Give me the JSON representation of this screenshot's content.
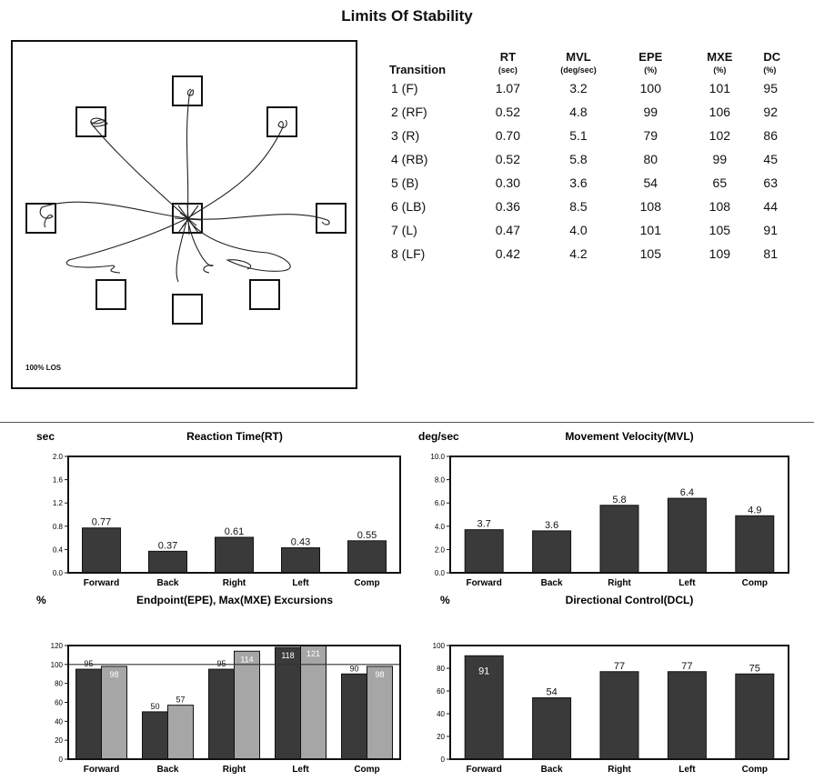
{
  "page_title": "Limits Of Stability",
  "trace_panel": {
    "label": "100% LOS"
  },
  "table": {
    "headers": [
      {
        "label": "Transition",
        "unit": ""
      },
      {
        "label": "RT",
        "unit": "(sec)"
      },
      {
        "label": "MVL",
        "unit": "(deg/sec)"
      },
      {
        "label": "EPE",
        "unit": "(%)"
      },
      {
        "label": "MXE",
        "unit": "(%)"
      },
      {
        "label": "DC",
        "unit": "(%)"
      }
    ],
    "rows": [
      [
        "1  (F)",
        "1.07",
        "3.2",
        "100",
        "101",
        "95"
      ],
      [
        "2  (RF)",
        "0.52",
        "4.8",
        "99",
        "106",
        "92"
      ],
      [
        "3  (R)",
        "0.70",
        "5.1",
        "79",
        "102",
        "86"
      ],
      [
        "4  (RB)",
        "0.52",
        "5.8",
        "80",
        "99",
        "45"
      ],
      [
        "5  (B)",
        "0.30",
        "3.6",
        "54",
        "65",
        "63"
      ],
      [
        "6  (LB)",
        "0.36",
        "8.5",
        "108",
        "108",
        "44"
      ],
      [
        "7  (L)",
        "0.47",
        "4.0",
        "101",
        "105",
        "91"
      ],
      [
        "8  (LF)",
        "0.42",
        "4.2",
        "105",
        "109",
        "81"
      ]
    ]
  },
  "chart_data": [
    {
      "type": "bar",
      "title": "Reaction Time(RT)",
      "unit_label": "sec",
      "categories": [
        "Forward",
        "Back",
        "Right",
        "Left",
        "Comp"
      ],
      "values": [
        0.77,
        0.37,
        0.61,
        0.43,
        0.55
      ],
      "value_labels": [
        "0.77",
        "0.37",
        "0.61",
        "0.43",
        "0.55"
      ],
      "yticks": [
        "0.0",
        "0.4",
        "0.8",
        "1.2",
        "1.6",
        "2.0"
      ],
      "ylim": [
        0,
        2.0
      ],
      "colors": [
        "#3a3a3a"
      ]
    },
    {
      "type": "bar",
      "title": "Movement Velocity(MVL)",
      "unit_label": "deg/sec",
      "categories": [
        "Forward",
        "Back",
        "Right",
        "Left",
        "Comp"
      ],
      "values": [
        3.7,
        3.6,
        5.8,
        6.4,
        4.9
      ],
      "value_labels": [
        "3.7",
        "3.6",
        "5.8",
        "6.4",
        "4.9"
      ],
      "yticks": [
        "0.0",
        "2.0",
        "4.0",
        "6.0",
        "8.0",
        "10.0"
      ],
      "ylim": [
        0,
        10.0
      ],
      "colors": [
        "#3a3a3a"
      ]
    },
    {
      "type": "bar",
      "title": "Endpoint(EPE), Max(MXE) Excursions",
      "unit_label": "%",
      "categories": [
        "Forward",
        "Back",
        "Right",
        "Left",
        "Comp"
      ],
      "series": [
        {
          "values": [
            95,
            50,
            95,
            118,
            90
          ],
          "value_labels": [
            "95",
            "50",
            "95",
            "118",
            "90"
          ],
          "color": "#3a3a3a"
        },
        {
          "values": [
            98,
            57,
            114,
            121,
            98
          ],
          "value_labels": [
            "98",
            "57",
            "114",
            "121",
            "98"
          ],
          "color": "#a6a6a6"
        }
      ],
      "reference_line": 100,
      "yticks": [
        "0",
        "20",
        "40",
        "60",
        "80",
        "100",
        "120"
      ],
      "ylim": [
        0,
        120
      ]
    },
    {
      "type": "bar",
      "title": "Directional Control(DCL)",
      "unit_label": "%",
      "categories": [
        "Forward",
        "Back",
        "Right",
        "Left",
        "Comp"
      ],
      "values": [
        91,
        54,
        77,
        77,
        75
      ],
      "value_labels": [
        "91",
        "54",
        "77",
        "77",
        "75"
      ],
      "yticks": [
        "0",
        "20",
        "40",
        "60",
        "80",
        "100"
      ],
      "ylim": [
        0,
        100
      ],
      "colors": [
        "#3a3a3a"
      ]
    }
  ]
}
